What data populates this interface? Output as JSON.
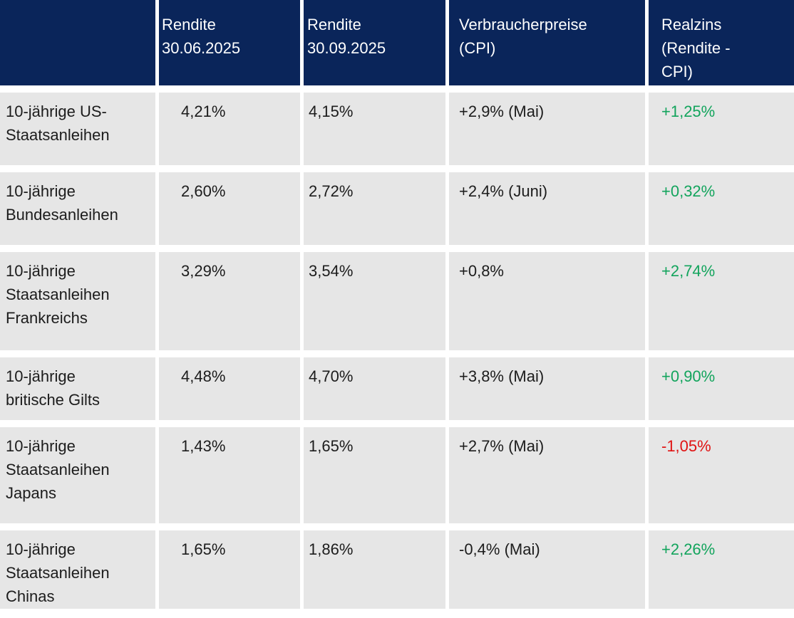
{
  "palette": {
    "header_bg": "#0a255a",
    "header_text": "#ffffff",
    "row_bg": "#e6e6e6",
    "body_text": "#1c1c1c",
    "positive": "#12a45c",
    "negative": "#e01212",
    "gap": "#ffffff"
  },
  "table": {
    "header": {
      "blank": "",
      "rendite_june_lines": [
        "Rendite",
        "30.06.2025"
      ],
      "rendite_sept_lines": [
        "Rendite",
        "30.09.2025"
      ],
      "cpi_lines": [
        "Verbraucherpreise",
        "(CPI)"
      ],
      "realzins_lines": [
        "Realzins",
        "(Rendite -",
        "CPI)"
      ]
    },
    "rows": [
      {
        "label_lines": [
          "10-jährige US-",
          "Staatsanleihen"
        ],
        "rendite_june": "4,21%",
        "rendite_sept": "4,15%",
        "cpi": "+2,9% (Mai)",
        "realzins": "+1,25%",
        "realzins_sentiment": "positive"
      },
      {
        "label_lines": [
          "10-jährige",
          "Bundesanleihen"
        ],
        "rendite_june": "2,60%",
        "rendite_sept": "2,72%",
        "cpi": "+2,4% (Juni)",
        "realzins": "+0,32%",
        "realzins_sentiment": "positive"
      },
      {
        "label_lines": [
          "10-jährige",
          "Staatsanleihen",
          "Frankreichs"
        ],
        "rendite_june": "3,29%",
        "rendite_sept": "3,54%",
        "cpi": "+0,8%",
        "realzins": "+2,74%",
        "realzins_sentiment": "positive"
      },
      {
        "label_lines": [
          "10-jährige",
          "britische Gilts"
        ],
        "rendite_june": "4,48%",
        "rendite_sept": "4,70%",
        "cpi": "+3,8% (Mai)",
        "realzins": "+0,90%",
        "realzins_sentiment": "positive"
      },
      {
        "label_lines": [
          "10-jährige",
          "Staatsanleihen",
          "Japans"
        ],
        "rendite_june": "1,43%",
        "rendite_sept": "1,65%",
        "cpi": "+2,7% (Mai)",
        "realzins": "-1,05%",
        "realzins_sentiment": "negative"
      },
      {
        "label_lines": [
          "10-jährige",
          "Staatsanleihen",
          "Chinas"
        ],
        "rendite_june": "1,65%",
        "rendite_sept": "1,86%",
        "cpi": "-0,4% (Mai)",
        "realzins": "+2,26%",
        "realzins_sentiment": "positive"
      }
    ]
  },
  "chart_data": {
    "type": "table",
    "columns": [
      "",
      "Rendite 30.06.2025",
      "Rendite 30.09.2025",
      "Verbraucherpreise (CPI)",
      "Realzins (Rendite - CPI)"
    ],
    "rows": [
      [
        "10-jährige US-Staatsanleihen",
        "4,21%",
        "4,15%",
        "+2,9% (Mai)",
        "+1,25%"
      ],
      [
        "10-jährige Bundesanleihen",
        "2,60%",
        "2,72%",
        "+2,4% (Juni)",
        "+0,32%"
      ],
      [
        "10-jährige Staatsanleihen Frankreichs",
        "3,29%",
        "3,54%",
        "+0,8%",
        "+2,74%"
      ],
      [
        "10-jährige britische Gilts",
        "4,48%",
        "4,70%",
        "+3,8% (Mai)",
        "+0,90%"
      ],
      [
        "10-jährige Staatsanleihen Japans",
        "1,43%",
        "1,65%",
        "+2,7% (Mai)",
        "-1,05%"
      ],
      [
        "10-jährige Staatsanleihen Chinas",
        "1,65%",
        "1,86%",
        "-0,4% (Mai)",
        "+2,26%"
      ]
    ],
    "legend_position": "none",
    "grid": false
  }
}
